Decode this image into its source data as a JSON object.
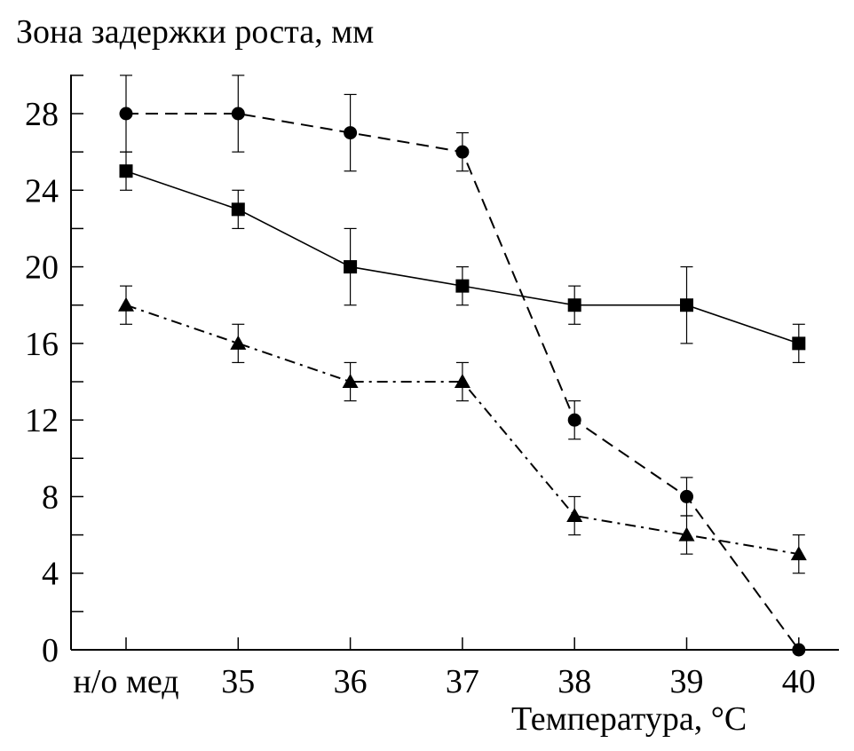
{
  "chart_data": {
    "type": "line",
    "ylabel": "Зона задержки роста, мм",
    "xlabel": "Температура, °C",
    "categories": [
      "н/о мед",
      "35",
      "36",
      "37",
      "38",
      "39",
      "40"
    ],
    "ylim": [
      0,
      30
    ],
    "yticks": [
      0,
      4,
      8,
      12,
      16,
      20,
      24,
      28
    ],
    "grid": false,
    "legend": "none",
    "series": [
      {
        "marker": "circle",
        "line_style": "dashed",
        "values": [
          28,
          28,
          27,
          26,
          12,
          8,
          0
        ],
        "errors": [
          2,
          2,
          2,
          1,
          1,
          1,
          0
        ]
      },
      {
        "marker": "square",
        "line_style": "solid",
        "values": [
          25,
          23,
          20,
          19,
          18,
          18,
          16
        ],
        "errors": [
          1,
          1,
          2,
          1,
          1,
          2,
          1
        ]
      },
      {
        "marker": "triangle",
        "line_style": "dash-dot",
        "values": [
          18,
          16,
          14,
          14,
          7,
          6,
          5
        ],
        "errors": [
          1,
          1,
          1,
          1,
          1,
          1,
          1
        ]
      }
    ],
    "color": "#000000"
  }
}
